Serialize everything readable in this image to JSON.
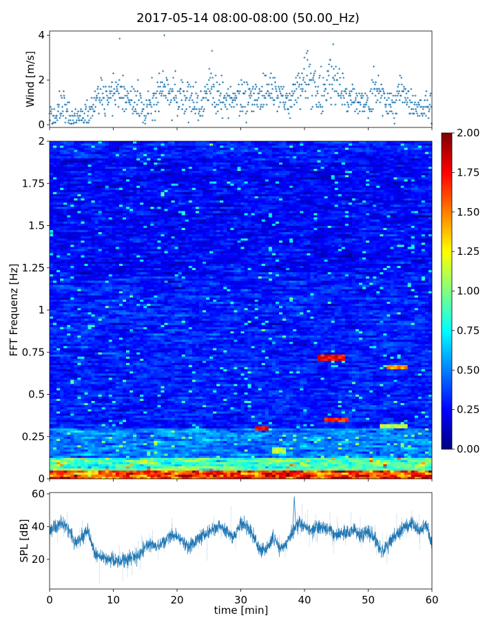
{
  "chart_data": [
    {
      "type": "scatter",
      "title": "2017-05-14 08:00-08:00 (50.00_Hz)",
      "xlabel": "",
      "ylabel": "Wind [m/s]",
      "xlim": [
        0,
        60
      ],
      "ylim": [
        -0.12,
        4.19
      ],
      "yticks": [
        "0",
        "2",
        "4"
      ],
      "xticks": [
        0,
        10,
        20,
        30,
        40,
        50,
        60
      ],
      "marker": "+",
      "color": "#1f77b4",
      "mean_wind_by_minute": [
        0.3,
        0.35,
        0.9,
        0.4,
        0.3,
        0.3,
        0.5,
        0.9,
        1.2,
        1.1,
        1.4,
        1.5,
        1.1,
        1.0,
        1.0,
        0.4,
        1.2,
        1.3,
        1.6,
        1.4,
        1.4,
        1.3,
        1.2,
        1.1,
        0.8,
        1.6,
        1.3,
        1.2,
        1.2,
        1.1,
        1.2,
        1.1,
        1.2,
        1.3,
        1.4,
        1.6,
        1.8,
        0.7,
        1.2,
        1.5,
        2.2,
        1.6,
        1.5,
        1.4,
        2.0,
        1.9,
        1.4,
        1.2,
        1.0,
        0.9,
        0.9,
        1.6,
        1.5,
        0.8,
        0.8,
        1.4,
        1.2,
        0.8,
        0.8,
        0.8,
        0.9
      ],
      "peaks": [
        {
          "t": 11,
          "v": 3.85
        },
        {
          "t": 18,
          "v": 4.0
        },
        {
          "t": 25.5,
          "v": 3.3
        },
        {
          "t": 44.5,
          "v": 3.6
        },
        {
          "t": 40.5,
          "v": 3.3
        }
      ]
    },
    {
      "type": "heatmap",
      "xlabel": "",
      "ylabel": "FFT Frequenz [Hz]",
      "xlim": [
        0,
        60
      ],
      "ylim": [
        0,
        2
      ],
      "yticks": [
        "0",
        "0.25",
        "0.5",
        "0.75",
        "1",
        "1.25",
        "1.5",
        "1.75",
        "2"
      ],
      "colormap": "jet",
      "colorbar": {
        "vmin": 0,
        "vmax": 2,
        "ticks": [
          "0.00",
          "0.25",
          "0.50",
          "0.75",
          "1.00",
          "1.25",
          "1.50",
          "1.75",
          "2.00"
        ]
      },
      "background_level": 0.3,
      "low_frequency_band": [
        {
          "f_max": 0.05,
          "level": 1.6
        },
        {
          "f_max": 0.12,
          "level": 0.9
        },
        {
          "f_max": 0.3,
          "level": 0.5
        }
      ],
      "hot_spots": [
        {
          "t0": 32,
          "t1": 34.5,
          "f": 0.3,
          "level": 1.9
        },
        {
          "t0": 42,
          "t1": 46.5,
          "f": 0.72,
          "level": 1.9
        },
        {
          "t0": 43,
          "t1": 47,
          "f": 0.35,
          "level": 1.8
        },
        {
          "t0": 53,
          "t1": 56,
          "f": 0.66,
          "level": 1.6
        },
        {
          "t0": 52,
          "t1": 56,
          "f": 0.31,
          "level": 1.3
        },
        {
          "t0": 35,
          "t1": 37,
          "f": 0.17,
          "level": 1.2
        }
      ]
    },
    {
      "type": "line",
      "xlabel": "time [min]",
      "ylabel": "SPL [dB]",
      "xlim": [
        0,
        60
      ],
      "ylim": [
        1.9,
        60.8
      ],
      "yticks": [
        "20",
        "40",
        "60"
      ],
      "xticks": [
        "0",
        "10",
        "20",
        "30",
        "40",
        "50",
        "60"
      ],
      "color": "#1f77b4",
      "mean_spl_by_minute": [
        38,
        40,
        42,
        38,
        30,
        33,
        38,
        24,
        21,
        20,
        19,
        19,
        20,
        21,
        22,
        27,
        30,
        28,
        31,
        35,
        35,
        30,
        28,
        32,
        34,
        37,
        39,
        40,
        36,
        33,
        42,
        40,
        35,
        26,
        25,
        33,
        27,
        28,
        36,
        42,
        40,
        38,
        40,
        39,
        38,
        35,
        36,
        36,
        38,
        35,
        37,
        33,
        25,
        28,
        34,
        37,
        40,
        42,
        36,
        42,
        30
      ]
    }
  ]
}
